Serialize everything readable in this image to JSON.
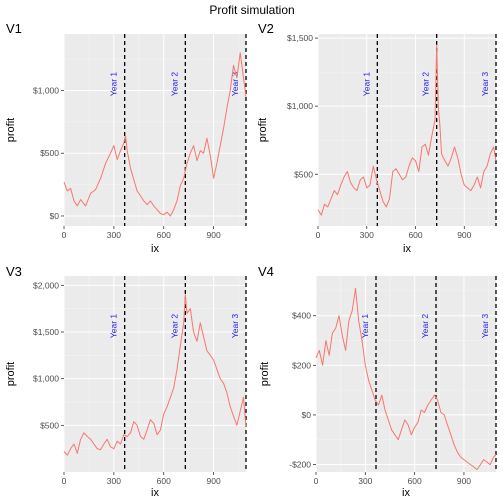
{
  "title": "Profit simulation",
  "colors": {
    "series": "#F8766D",
    "year_label": "#1F1FE6",
    "panel_bg": "#EBEBEB"
  },
  "chart_data": [
    {
      "tag": "V1",
      "type": "line",
      "xlabel": "ix",
      "ylabel": "profit",
      "xlim": [
        0,
        1095
      ],
      "ylim": [
        -80,
        1450
      ],
      "x_ticks": [
        0,
        300,
        600,
        900
      ],
      "y_ticks": [
        0,
        500,
        1000
      ],
      "y_tick_labels": [
        "$0",
        "$500",
        "$1,000"
      ],
      "vlines": [
        365,
        730,
        1095
      ],
      "vline_labels": [
        "Year 1",
        "Year 2",
        "Year 3"
      ],
      "series": [
        {
          "name": "",
          "x": [
            0,
            20,
            40,
            60,
            80,
            100,
            130,
            160,
            190,
            220,
            250,
            280,
            300,
            320,
            340,
            360,
            370,
            380,
            400,
            420,
            440,
            460,
            480,
            500,
            520,
            540,
            560,
            580,
            600,
            620,
            640,
            660,
            680,
            700,
            720,
            740,
            760,
            780,
            800,
            820,
            840,
            860,
            880,
            900,
            920,
            940,
            960,
            980,
            1000,
            1020,
            1040,
            1060,
            1080,
            1095
          ],
          "y": [
            270,
            200,
            220,
            120,
            80,
            130,
            80,
            180,
            210,
            300,
            420,
            500,
            560,
            450,
            520,
            580,
            640,
            520,
            380,
            290,
            200,
            160,
            120,
            90,
            120,
            80,
            50,
            20,
            10,
            30,
            0,
            50,
            120,
            240,
            300,
            420,
            500,
            560,
            440,
            520,
            500,
            620,
            480,
            300,
            420,
            560,
            700,
            860,
            1000,
            1200,
            1100,
            1300,
            1100,
            950
          ]
        }
      ]
    },
    {
      "tag": "V2",
      "type": "line",
      "xlabel": "ix",
      "ylabel": "profit",
      "xlim": [
        0,
        1095
      ],
      "ylim": [
        120,
        1530
      ],
      "x_ticks": [
        0,
        300,
        600,
        900
      ],
      "y_ticks": [
        500,
        1000,
        1500
      ],
      "y_tick_labels": [
        "$500",
        "$1,000",
        "$1,500"
      ],
      "vlines": [
        365,
        730,
        1095
      ],
      "vline_labels": [
        "Year 1",
        "Year 2",
        "Year 3"
      ],
      "series": [
        {
          "name": "",
          "x": [
            0,
            20,
            40,
            60,
            80,
            100,
            120,
            140,
            160,
            180,
            200,
            220,
            240,
            260,
            280,
            300,
            320,
            340,
            360,
            380,
            400,
            420,
            440,
            460,
            480,
            500,
            520,
            540,
            560,
            580,
            600,
            620,
            640,
            660,
            680,
            700,
            720,
            730,
            740,
            750,
            760,
            780,
            800,
            820,
            840,
            860,
            880,
            900,
            920,
            940,
            960,
            980,
            1000,
            1020,
            1040,
            1060,
            1080,
            1095
          ],
          "y": [
            240,
            200,
            280,
            260,
            320,
            380,
            350,
            420,
            480,
            520,
            440,
            400,
            380,
            460,
            480,
            400,
            420,
            560,
            460,
            380,
            300,
            260,
            320,
            520,
            540,
            500,
            460,
            480,
            560,
            620,
            600,
            520,
            700,
            720,
            640,
            780,
            900,
            1450,
            1000,
            860,
            650,
            600,
            560,
            620,
            700,
            620,
            500,
            420,
            400,
            380,
            420,
            480,
            400,
            520,
            560,
            650,
            700,
            600
          ]
        }
      ]
    },
    {
      "tag": "V3",
      "type": "line",
      "xlabel": "ix",
      "ylabel": "profit",
      "xlim": [
        0,
        1095
      ],
      "ylim": [
        0,
        2100
      ],
      "x_ticks": [
        0,
        300,
        600,
        900
      ],
      "y_ticks": [
        500,
        1000,
        1500,
        2000
      ],
      "y_tick_labels": [
        "$500",
        "$1,000",
        "$1,500",
        "$2,000"
      ],
      "vlines": [
        365,
        730,
        1095
      ],
      "vline_labels": [
        "Year 1",
        "Year 2",
        "Year 3"
      ],
      "series": [
        {
          "name": "",
          "x": [
            0,
            20,
            40,
            60,
            80,
            100,
            120,
            140,
            160,
            180,
            200,
            220,
            240,
            260,
            280,
            300,
            320,
            340,
            360,
            380,
            400,
            420,
            440,
            460,
            480,
            500,
            520,
            540,
            560,
            580,
            600,
            620,
            640,
            660,
            680,
            700,
            720,
            730,
            740,
            760,
            780,
            800,
            820,
            840,
            860,
            880,
            900,
            920,
            940,
            960,
            980,
            1000,
            1020,
            1040,
            1060,
            1080,
            1095
          ],
          "y": [
            220,
            180,
            250,
            300,
            200,
            350,
            420,
            380,
            350,
            300,
            250,
            240,
            300,
            350,
            270,
            250,
            330,
            300,
            400,
            380,
            420,
            540,
            500,
            380,
            350,
            450,
            560,
            520,
            400,
            450,
            620,
            700,
            800,
            900,
            1100,
            1350,
            1600,
            1900,
            1700,
            1750,
            1500,
            1400,
            1600,
            1450,
            1300,
            1250,
            1200,
            1100,
            1000,
            950,
            850,
            700,
            600,
            500,
            650,
            800,
            480
          ]
        }
      ]
    },
    {
      "tag": "V4",
      "type": "line",
      "xlabel": "ix",
      "ylabel": "profit",
      "xlim": [
        0,
        1095
      ],
      "ylim": [
        -230,
        560
      ],
      "x_ticks": [
        0,
        300,
        600,
        900
      ],
      "y_ticks": [
        -200,
        0,
        200,
        400
      ],
      "y_tick_labels": [
        "-$200",
        "$0",
        "$200",
        "$400"
      ],
      "vlines": [
        365,
        730,
        1095
      ],
      "vline_labels": [
        "Year 1",
        "Year 2",
        "Year 3"
      ],
      "series": [
        {
          "name": "",
          "x": [
            0,
            20,
            40,
            60,
            80,
            100,
            120,
            140,
            160,
            180,
            200,
            220,
            240,
            260,
            280,
            300,
            320,
            340,
            360,
            380,
            400,
            420,
            440,
            460,
            480,
            500,
            520,
            540,
            560,
            580,
            600,
            620,
            640,
            660,
            680,
            700,
            720,
            740,
            760,
            780,
            800,
            820,
            840,
            860,
            880,
            900,
            920,
            940,
            960,
            980,
            1000,
            1020,
            1040,
            1060,
            1080,
            1095
          ],
          "y": [
            230,
            260,
            200,
            300,
            240,
            330,
            350,
            400,
            320,
            260,
            380,
            420,
            510,
            380,
            300,
            200,
            140,
            100,
            60,
            40,
            80,
            20,
            -20,
            -60,
            -80,
            -100,
            -60,
            -20,
            -40,
            -80,
            -50,
            -30,
            20,
            10,
            40,
            60,
            80,
            60,
            10,
            0,
            -40,
            -80,
            -120,
            -150,
            -170,
            -180,
            -190,
            -200,
            -210,
            -220,
            -200,
            -180,
            -190,
            -200,
            -170,
            -160
          ]
        }
      ]
    }
  ]
}
